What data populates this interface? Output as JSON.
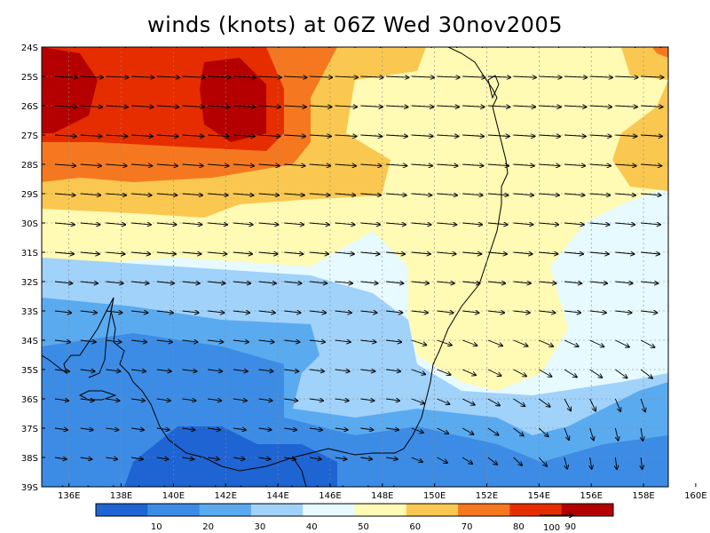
{
  "title": "winds (knots) at 06Z Wed 30nov2005",
  "latitude_labels": [
    "24S",
    "25S",
    "26S",
    "27S",
    "28S",
    "29S",
    "30S",
    "31S",
    "32S",
    "33S",
    "34S",
    "35S",
    "36S",
    "37S",
    "38S",
    "39S"
  ],
  "longitude_labels": [
    "136E",
    "138E",
    "140E",
    "142E",
    "144E",
    "146E",
    "148E",
    "150E",
    "152E",
    "154E",
    "156E",
    "158E",
    "160E"
  ],
  "colorbar": {
    "labels": [
      "10",
      "20",
      "30",
      "40",
      "50",
      "60",
      "70",
      "80",
      "90"
    ],
    "colors": [
      "#1e64d2",
      "#3c8ce6",
      "#5aaaf0",
      "#a0d2fa",
      "#e6faff",
      "#fffab4",
      "#fac850",
      "#f57820",
      "#e62d00",
      "#b40000"
    ]
  },
  "reference_vector_label": "100",
  "palette": {
    "land_outline": "#000000",
    "grid": "#888888",
    "arrow": "#000000"
  }
}
